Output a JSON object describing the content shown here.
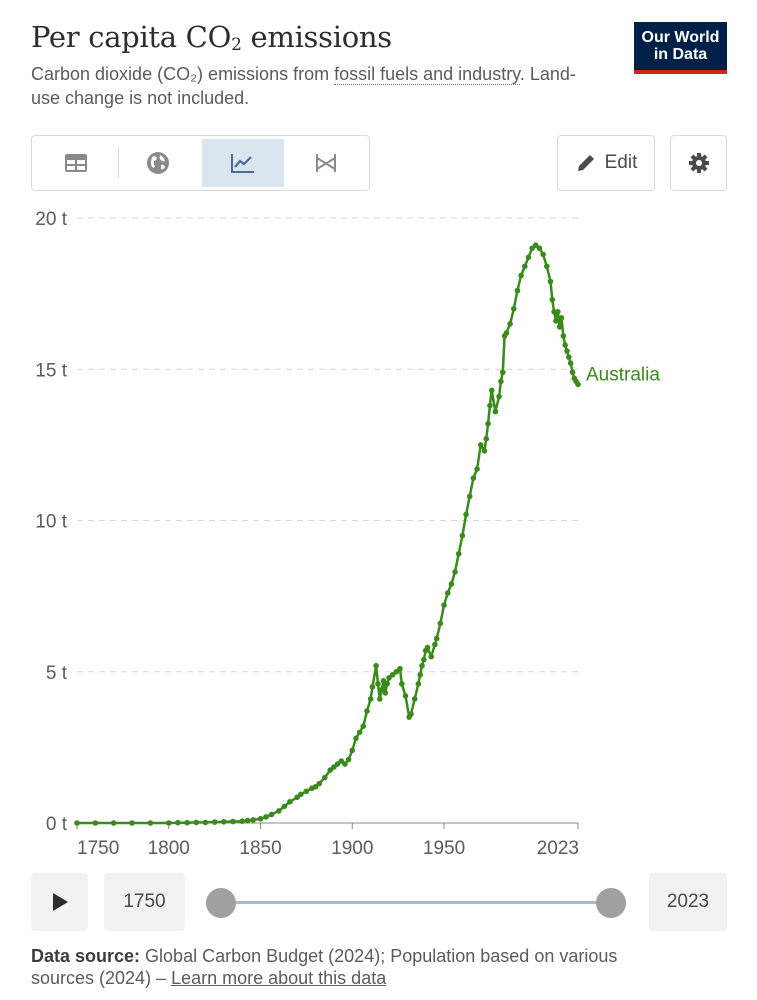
{
  "header": {
    "title_main": "Per capita CO",
    "title_sub": "2",
    "title_end": " emissions",
    "subtitle_pre": "Carbon dioxide (CO₂) emissions from ",
    "subtitle_link": "fossil fuels and industry",
    "subtitle_post": ". Land-use change is not included.",
    "logo_line1": "Our World",
    "logo_line2": "in Data"
  },
  "toolbar": {
    "tabs": [
      {
        "icon": "table-icon",
        "active": false
      },
      {
        "icon": "globe-icon",
        "active": false
      },
      {
        "icon": "line-chart-icon",
        "active": true
      },
      {
        "icon": "slope-chart-icon",
        "active": false
      }
    ],
    "edit_label": "Edit",
    "settings_icon": "gear-icon"
  },
  "chart_data": {
    "type": "line",
    "ylim": [
      0,
      20
    ],
    "xlim": [
      1750,
      2023
    ],
    "y_ticks": [
      {
        "value": 0,
        "label": "0 t"
      },
      {
        "value": 5,
        "label": "5 t"
      },
      {
        "value": 10,
        "label": "10 t"
      },
      {
        "value": 15,
        "label": "15 t"
      },
      {
        "value": 20,
        "label": "20 t"
      }
    ],
    "x_ticks": [
      {
        "value": 1750,
        "label": "1750"
      },
      {
        "value": 1800,
        "label": "1800"
      },
      {
        "value": 1850,
        "label": "1850"
      },
      {
        "value": 1900,
        "label": "1900"
      },
      {
        "value": 1950,
        "label": "1950"
      },
      {
        "value": 2023,
        "label": "2023"
      }
    ],
    "grid": true,
    "series": [
      {
        "name": "Australia",
        "color": "#3a8a1c",
        "x": [
          1750,
          1760,
          1770,
          1780,
          1790,
          1800,
          1805,
          1810,
          1815,
          1820,
          1825,
          1830,
          1835,
          1840,
          1843,
          1846,
          1850,
          1853,
          1856,
          1860,
          1863,
          1866,
          1870,
          1872,
          1875,
          1878,
          1880,
          1882,
          1885,
          1888,
          1890,
          1892,
          1894,
          1896,
          1898,
          1900,
          1902,
          1904,
          1906,
          1908,
          1910,
          1911,
          1913,
          1914,
          1915,
          1916,
          1917,
          1918,
          1919,
          1920,
          1922,
          1924,
          1926,
          1927,
          1929,
          1931,
          1932,
          1934,
          1936,
          1937,
          1938,
          1939,
          1940,
          1941,
          1943,
          1945,
          1946,
          1948,
          1950,
          1952,
          1954,
          1956,
          1958,
          1960,
          1962,
          1964,
          1966,
          1968,
          1970,
          1972,
          1973,
          1974,
          1975,
          1976,
          1978,
          1980,
          1981,
          1982,
          1983,
          1984,
          1986,
          1988,
          1990,
          1992,
          1994,
          1996,
          1998,
          2000,
          2002,
          2004,
          2006,
          2008,
          2009,
          2010,
          2011,
          2012,
          2013,
          2014,
          2015,
          2016,
          2017,
          2018,
          2019,
          2020,
          2021,
          2022,
          2023
        ],
        "y": [
          0,
          0,
          0,
          0,
          0,
          0,
          0.01,
          0.01,
          0.02,
          0.02,
          0.03,
          0.04,
          0.05,
          0.06,
          0.08,
          0.1,
          0.14,
          0.2,
          0.28,
          0.4,
          0.55,
          0.7,
          0.85,
          0.95,
          1.05,
          1.15,
          1.2,
          1.3,
          1.5,
          1.75,
          1.85,
          1.95,
          2.05,
          1.95,
          2.1,
          2.4,
          2.8,
          3.0,
          3.2,
          3.7,
          4.1,
          4.5,
          5.2,
          4.6,
          4.1,
          4.4,
          4.7,
          4.3,
          4.6,
          4.8,
          4.9,
          5.0,
          5.1,
          4.6,
          4.2,
          3.5,
          3.6,
          4.1,
          4.6,
          4.9,
          5.2,
          5.4,
          5.7,
          5.8,
          5.5,
          5.9,
          6.1,
          6.6,
          7.2,
          7.6,
          7.9,
          8.3,
          8.9,
          9.5,
          10.2,
          10.8,
          11.4,
          11.7,
          12.5,
          12.3,
          12.7,
          13.2,
          13.8,
          14.3,
          13.6,
          14.1,
          14.6,
          14.9,
          16.1,
          16.2,
          16.5,
          17.0,
          17.6,
          18.1,
          18.4,
          18.7,
          19.0,
          19.1,
          19.0,
          18.8,
          18.4,
          17.9,
          17.3,
          16.9,
          16.6,
          16.9,
          16.4,
          16.7,
          16.1,
          15.8,
          15.6,
          15.4,
          15.2,
          14.9,
          14.7,
          14.6,
          14.5
        ]
      }
    ]
  },
  "timeline": {
    "start_year": "1750",
    "end_year": "2023",
    "start_fraction": 0,
    "end_fraction": 1
  },
  "footer": {
    "source_label": "Data source:",
    "source_text": " Global Carbon Budget (2024); Population based on various sources (2024) – ",
    "source_link": "Learn more about this data"
  }
}
